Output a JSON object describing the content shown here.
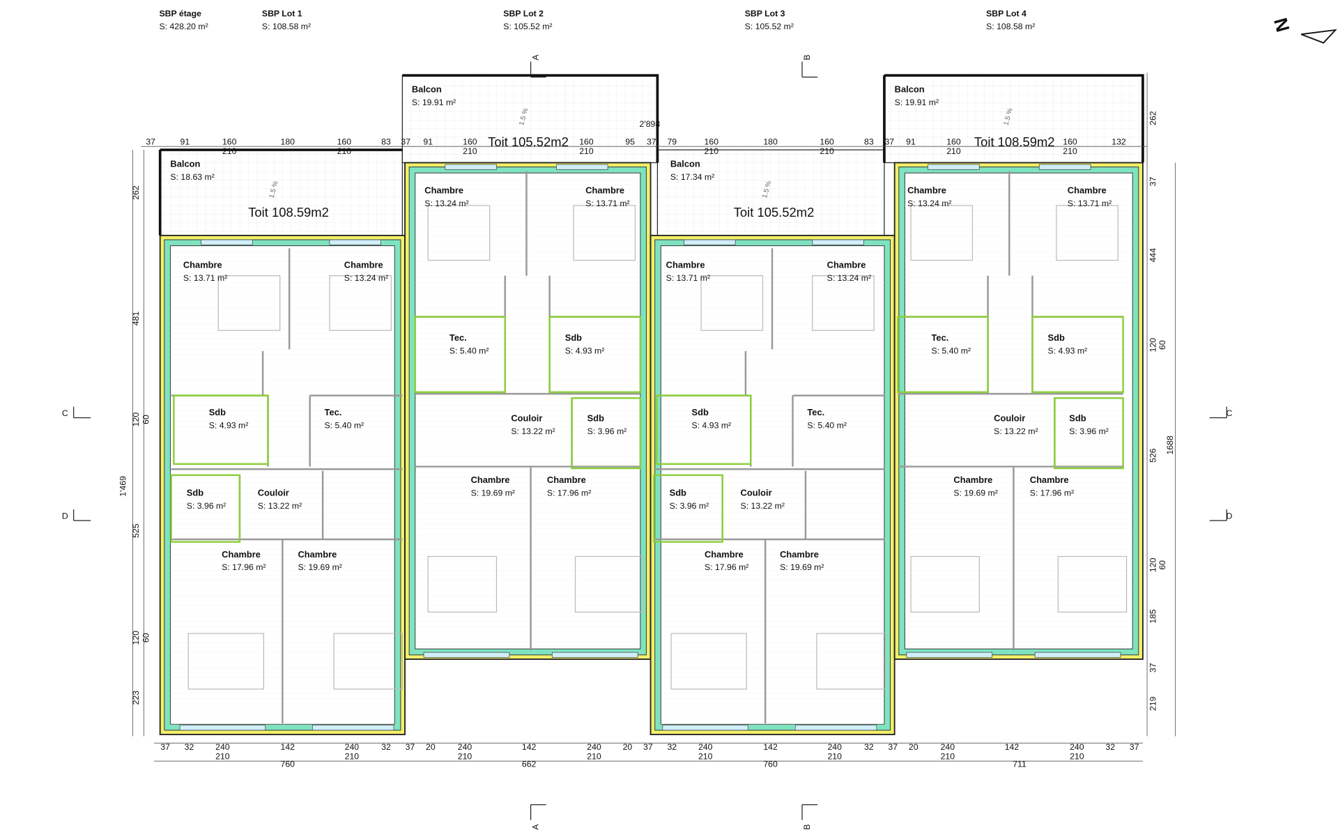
{
  "header": [
    {
      "title": "SBP étage",
      "area": "S: 428.20 m²"
    },
    {
      "title": "SBP Lot 1",
      "area": "S: 108.58 m²"
    },
    {
      "title": "SBP Lot 2",
      "area": "S: 105.52 m²"
    },
    {
      "title": "SBP Lot 3",
      "area": "S: 105.52 m²"
    },
    {
      "title": "SBP Lot 4",
      "area": "S: 108.58 m²"
    }
  ],
  "rooms": [
    {
      "name": "Balcon",
      "area": "S: 18.63 m²"
    },
    {
      "name": "Chambre",
      "area": "S: 13.71 m²"
    },
    {
      "name": "Chambre",
      "area": "S: 13.24 m²"
    },
    {
      "name": "Sdb",
      "area": "S: 4.93 m²"
    },
    {
      "name": "Tec.",
      "area": "S: 5.40 m²"
    },
    {
      "name": "Sdb",
      "area": "S: 3.96 m²"
    },
    {
      "name": "Couloir",
      "area": "S: 13.22 m²"
    },
    {
      "name": "Chambre",
      "area": "S: 17.96 m²"
    },
    {
      "name": "Chambre",
      "area": "S: 19.69 m²"
    },
    {
      "name": "Balcon",
      "area": "S: 19.91 m²"
    },
    {
      "name": "Chambre",
      "area": "S: 13.24 m²"
    },
    {
      "name": "Chambre",
      "area": "S: 13.71 m²"
    },
    {
      "name": "Tec.",
      "area": "S: 5.40 m²"
    },
    {
      "name": "Sdb",
      "area": "S: 4.93 m²"
    },
    {
      "name": "Couloir",
      "area": "S: 13.22 m²"
    },
    {
      "name": "Sdb",
      "area": "S: 3.96 m²"
    },
    {
      "name": "Chambre",
      "area": "S: 19.69 m²"
    },
    {
      "name": "Chambre",
      "area": "S: 17.96 m²"
    },
    {
      "name": "Balcon",
      "area": "S: 17.34 m²"
    },
    {
      "name": "Chambre",
      "area": "S: 13.71 m²"
    },
    {
      "name": "Chambre",
      "area": "S: 13.24 m²"
    },
    {
      "name": "Sdb",
      "area": "S: 4.93 m²"
    },
    {
      "name": "Tec.",
      "area": "S: 5.40 m²"
    },
    {
      "name": "Sdb",
      "area": "S: 3.96 m²"
    },
    {
      "name": "Couloir",
      "area": "S: 13.22 m²"
    },
    {
      "name": "Chambre",
      "area": "S: 17.96 m²"
    },
    {
      "name": "Chambre",
      "area": "S: 19.69 m²"
    },
    {
      "name": "Balcon",
      "area": "S: 19.91 m²"
    },
    {
      "name": "Chambre",
      "area": "S: 13.24 m²"
    },
    {
      "name": "Chambre",
      "area": "S: 13.71 m²"
    },
    {
      "name": "Tec.",
      "area": "S: 5.40 m²"
    },
    {
      "name": "Sdb",
      "area": "S: 4.93 m²"
    },
    {
      "name": "Couloir",
      "area": "S: 13.22 m²"
    },
    {
      "name": "Sdb",
      "area": "S: 3.96 m²"
    },
    {
      "name": "Chambre",
      "area": "S: 19.69 m²"
    },
    {
      "name": "Chambre",
      "area": "S: 17.96 m²"
    }
  ],
  "roofs": [
    "Toit 108.59m2",
    "Toit 105.52m2",
    "Toit 105.52m2",
    "Toit 108.59m2"
  ],
  "slopes": [
    "1.5 %",
    "1.5 %",
    "1.5 %",
    "1.5 %"
  ],
  "dimensions": {
    "top": [
      37,
      91,
      160,
      180,
      160,
      83,
      37,
      91,
      160,
      160,
      95,
      37,
      79,
      160,
      180,
      160,
      83,
      37,
      91,
      160,
      160,
      132
    ],
    "top_sub": [
      210,
      210,
      210,
      210,
      210,
      210,
      210,
      210
    ],
    "overall_top": "2'898",
    "bottom": [
      37,
      32,
      240,
      142,
      240,
      32,
      37,
      20,
      240,
      142,
      240,
      20,
      37,
      32,
      240,
      142,
      240,
      32,
      37,
      20,
      240,
      142,
      240,
      32,
      37
    ],
    "bottom_sub": [
      210,
      210,
      210,
      210,
      210,
      210,
      210,
      210
    ],
    "bottom_totals": [
      760,
      662,
      760,
      711
    ],
    "left": [
      262,
      481,
      120,
      60,
      525,
      120,
      60,
      223
    ],
    "left_total": "1'469",
    "right": [
      262,
      37,
      444,
      120,
      60,
      526,
      120,
      60,
      185,
      37,
      219
    ],
    "right_total": 1688
  },
  "sections": [
    "A",
    "A",
    "B",
    "B",
    "C",
    "C",
    "D",
    "D"
  ],
  "north": "N"
}
